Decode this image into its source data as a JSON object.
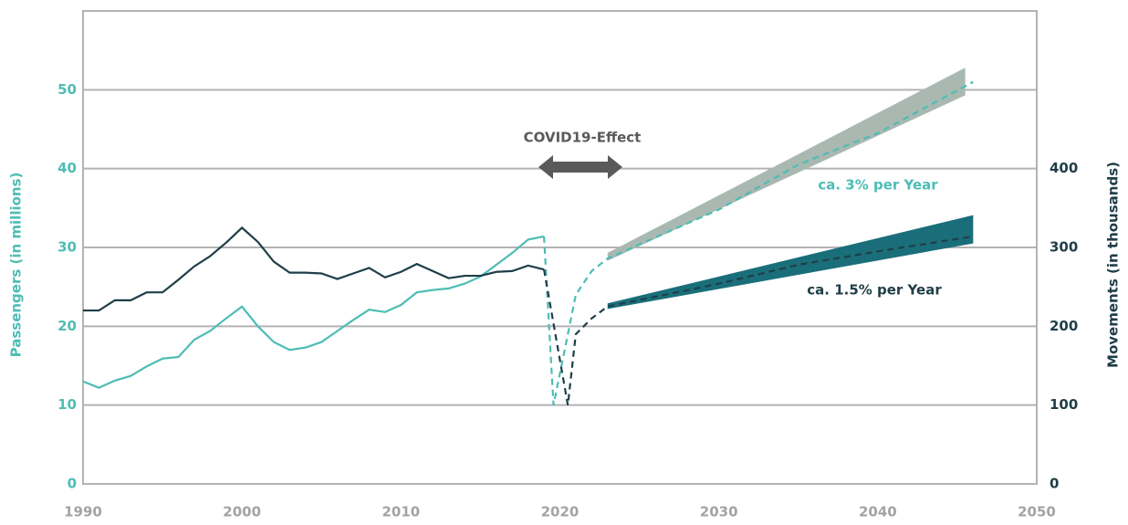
{
  "chart_data": {
    "type": "line",
    "y_label": "Passengers (in millions)",
    "y2_label": "Movements (in thousands)",
    "xlim": [
      1990,
      2050
    ],
    "xticks": [
      1990,
      2000,
      2010,
      2020,
      2030,
      2040,
      2050
    ],
    "ylim": [
      0,
      60
    ],
    "yticks": [
      0,
      10,
      20,
      30,
      40,
      50
    ],
    "y2lim": [
      0,
      600
    ],
    "y2ticks": [
      0,
      100,
      200,
      300,
      400
    ],
    "grid": true,
    "y_color": "#4dbdb5",
    "y2_color": "#1f3e48",
    "x_color": "#a3a3a3",
    "annotations": [
      {
        "text": "COVID19-Effect",
        "color": "#5a5a5a"
      },
      {
        "text": "ca. 3% per Year",
        "color": "#4dbdb5"
      },
      {
        "text": "ca. 1.5% per Year",
        "color": "#1f3e48"
      }
    ],
    "bands": [
      {
        "color": "#a9b8b1",
        "axis": "y",
        "x": [
          2023,
          2045.5
        ],
        "lower": [
          28.3,
          49.3
        ],
        "upper": [
          29.3,
          52.8
        ]
      },
      {
        "color": "#1a6e7a",
        "axis": "y2",
        "x": [
          2023,
          2046
        ],
        "lower": [
          222,
          305
        ],
        "upper": [
          229,
          341
        ]
      }
    ],
    "series": [
      {
        "color": "#4dbdb5",
        "axis": "y",
        "dashed": false,
        "x": [
          1990,
          1991,
          1992,
          1993,
          1994,
          1995,
          1996,
          1997,
          1998,
          1999,
          2000,
          2001,
          2002,
          2003,
          2004,
          2005,
          2006,
          2007,
          2008,
          2009,
          2010,
          2011,
          2012,
          2013,
          2014,
          2015,
          2016,
          2017,
          2018,
          2019
        ],
        "values": [
          13.0,
          12.2,
          13.1,
          13.7,
          14.9,
          15.9,
          16.1,
          18.3,
          19.4,
          21.0,
          22.5,
          20.0,
          18.0,
          17.0,
          17.3,
          18.0,
          19.4,
          20.8,
          22.1,
          21.8,
          22.7,
          24.3,
          24.6,
          24.8,
          25.4,
          26.3,
          27.8,
          29.3,
          31.0,
          31.4
        ]
      },
      {
        "color": "#1f3e48",
        "axis": "y2",
        "dashed": false,
        "x": [
          1990,
          1991,
          1992,
          1993,
          1994,
          1995,
          1996,
          1997,
          1998,
          1999,
          2000,
          2001,
          2002,
          2003,
          2004,
          2005,
          2006,
          2007,
          2008,
          2009,
          2010,
          2011,
          2012,
          2013,
          2014,
          2015,
          2016,
          2017,
          2018,
          2019
        ],
        "values": [
          220,
          220,
          233,
          233,
          243,
          243,
          259,
          276,
          289,
          306,
          325,
          307,
          282,
          268,
          268,
          267,
          260,
          267,
          274,
          262,
          269,
          279,
          270,
          261,
          264,
          264,
          269,
          270,
          277,
          272
        ]
      },
      {
        "color": "#4dbdb5",
        "axis": "y",
        "dashed": true,
        "x": [
          2019,
          2019.6,
          2021,
          2022,
          2023,
          2030,
          2035,
          2040,
          2046
        ],
        "values": [
          31.4,
          10,
          24,
          27,
          28.6,
          34.8,
          40.5,
          44.5,
          51
        ]
      },
      {
        "color": "#1f3e48",
        "axis": "y2",
        "dashed": true,
        "x": [
          2019,
          2020.5,
          2021,
          2022,
          2023,
          2030,
          2035,
          2040,
          2046
        ],
        "values": [
          272,
          100,
          190,
          210,
          225,
          254,
          278,
          295,
          314
        ]
      }
    ]
  }
}
